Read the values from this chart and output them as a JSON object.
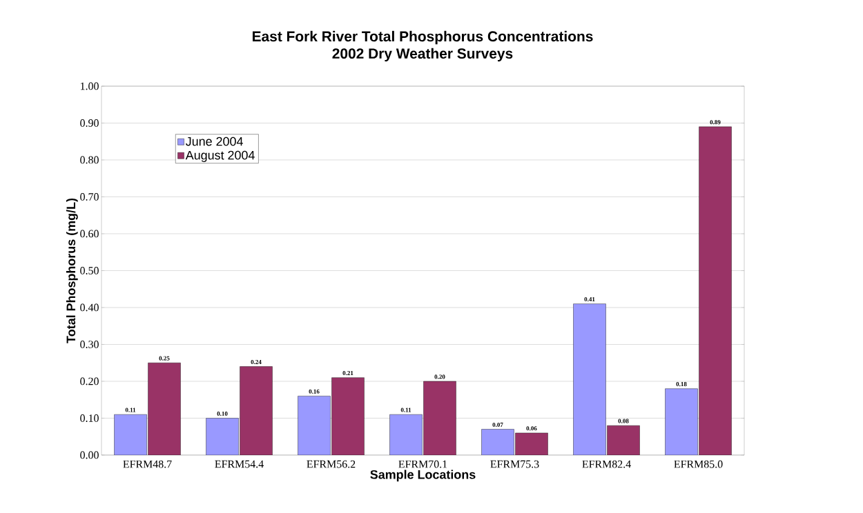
{
  "chart_data": {
    "type": "bar",
    "title": "East Fork River Total Phosphorus Concentrations",
    "subtitle": "2002 Dry Weather Surveys",
    "xlabel": "Sample Locations",
    "ylabel": "Total Phosphorus (mg/L)",
    "categories": [
      "EFRM48.7",
      "EFRM54.4",
      "EFRM56.2",
      "EFRM70.1",
      "EFRM75.3",
      "EFRM82.4",
      "EFRM85.0"
    ],
    "series": [
      {
        "name": "June 2004",
        "color": "#9999ff",
        "values": [
          0.11,
          0.1,
          0.16,
          0.11,
          0.07,
          0.41,
          0.18
        ],
        "value_labels": [
          "0.11",
          "0.10",
          "0.16",
          "0.11",
          "0.07",
          "0.41",
          "0.18"
        ]
      },
      {
        "name": "August 2004",
        "color": "#993366",
        "values": [
          0.25,
          0.24,
          0.21,
          0.2,
          0.06,
          0.08,
          0.89
        ],
        "value_labels": [
          "0.25",
          "0.24",
          "0.21",
          "0.20",
          "0.06",
          "0.08",
          "0.89"
        ]
      }
    ],
    "ylim": [
      0,
      1
    ],
    "yticks": [
      {
        "value": 0,
        "label": "0.00"
      },
      {
        "value": 0.1,
        "label": "0.10"
      },
      {
        "value": 0.2,
        "label": "0.20"
      },
      {
        "value": 0.3,
        "label": "0.30"
      },
      {
        "value": 0.4,
        "label": "0.40"
      },
      {
        "value": 0.5,
        "label": "0.50"
      },
      {
        "value": 0.6,
        "label": "0.60"
      },
      {
        "value": 0.7,
        "label": "0.70"
      },
      {
        "value": 0.8,
        "label": "0.80"
      },
      {
        "value": 0.9,
        "label": "0.90"
      },
      {
        "value": 1,
        "label": "1.00"
      }
    ],
    "grid": "y",
    "legend": "top left"
  }
}
